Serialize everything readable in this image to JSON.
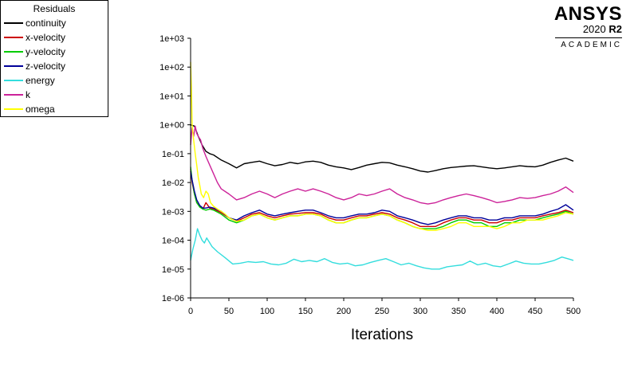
{
  "brand": {
    "name": "ANSYS",
    "version": "2020",
    "release": "R2",
    "edition": "ACADEMIC"
  },
  "chart_data": {
    "type": "line",
    "title": "",
    "xlabel": "Iterations",
    "ylabel": "",
    "xlim": [
      0,
      500
    ],
    "ylim": [
      1e-06,
      1000
    ],
    "yscale": "log",
    "grid": false,
    "legend_title": "Residuals",
    "legend_position": "top-left",
    "x_ticks": [
      "0",
      "50",
      "100",
      "150",
      "200",
      "250",
      "300",
      "350",
      "400",
      "450",
      "500"
    ],
    "y_ticks": [
      "1e-06",
      "1e-05",
      "1e-04",
      "1e-03",
      "1e-02",
      "1e-01",
      "1e+00",
      "1e+01",
      "1e+02",
      "1e+03"
    ],
    "series": [
      {
        "name": "continuity",
        "color": "#000000",
        "x": [
          0,
          5,
          10,
          15,
          20,
          25,
          30,
          40,
          50,
          60,
          70,
          80,
          90,
          100,
          110,
          120,
          130,
          140,
          150,
          160,
          170,
          180,
          190,
          200,
          210,
          220,
          230,
          240,
          250,
          260,
          270,
          280,
          290,
          300,
          310,
          320,
          330,
          340,
          350,
          360,
          370,
          380,
          390,
          400,
          410,
          420,
          430,
          440,
          450,
          460,
          470,
          480,
          490,
          500
        ],
        "y": [
          1.0,
          0.9,
          0.4,
          0.2,
          0.12,
          0.1,
          0.09,
          0.06,
          0.045,
          0.032,
          0.045,
          0.05,
          0.055,
          0.045,
          0.038,
          0.042,
          0.05,
          0.045,
          0.052,
          0.055,
          0.05,
          0.04,
          0.035,
          0.032,
          0.028,
          0.033,
          0.04,
          0.045,
          0.05,
          0.048,
          0.04,
          0.035,
          0.03,
          0.025,
          0.023,
          0.026,
          0.03,
          0.033,
          0.035,
          0.037,
          0.038,
          0.035,
          0.032,
          0.03,
          0.032,
          0.035,
          0.038,
          0.036,
          0.035,
          0.04,
          0.05,
          0.06,
          0.07,
          0.055
        ]
      },
      {
        "name": "x-velocity",
        "color": "#cc0000",
        "x": [
          0,
          2,
          5,
          8,
          12,
          16,
          20,
          25,
          30,
          40,
          50,
          60,
          70,
          80,
          90,
          100,
          110,
          120,
          130,
          140,
          150,
          160,
          170,
          180,
          190,
          200,
          210,
          220,
          230,
          240,
          250,
          260,
          270,
          280,
          290,
          300,
          310,
          320,
          330,
          340,
          350,
          360,
          370,
          380,
          390,
          400,
          410,
          420,
          430,
          440,
          450,
          460,
          470,
          480,
          490,
          500
        ],
        "y": [
          0.03,
          0.01,
          0.004,
          0.002,
          0.0015,
          0.0012,
          0.002,
          0.0013,
          0.0012,
          0.0009,
          0.0006,
          0.00045,
          0.0006,
          0.0008,
          0.0009,
          0.0007,
          0.0006,
          0.0007,
          0.0008,
          0.00085,
          0.0009,
          0.0009,
          0.0008,
          0.0006,
          0.0005,
          0.0005,
          0.0006,
          0.0007,
          0.0007,
          0.0008,
          0.0009,
          0.0008,
          0.0006,
          0.0005,
          0.0004,
          0.0003,
          0.0003,
          0.0003,
          0.0004,
          0.0005,
          0.0006,
          0.0006,
          0.0005,
          0.0005,
          0.0004,
          0.0004,
          0.0005,
          0.0005,
          0.0006,
          0.0006,
          0.0006,
          0.0007,
          0.0008,
          0.0009,
          0.0011,
          0.0009
        ]
      },
      {
        "name": "y-velocity",
        "color": "#00cc00",
        "x": [
          0,
          2,
          5,
          8,
          12,
          16,
          20,
          25,
          30,
          40,
          50,
          60,
          70,
          80,
          90,
          100,
          110,
          120,
          130,
          140,
          150,
          160,
          170,
          180,
          190,
          200,
          210,
          220,
          230,
          240,
          250,
          260,
          270,
          280,
          290,
          300,
          310,
          320,
          330,
          340,
          350,
          360,
          370,
          380,
          390,
          400,
          410,
          420,
          430,
          440,
          450,
          460,
          470,
          480,
          490,
          500
        ],
        "y": [
          0.035,
          0.012,
          0.004,
          0.002,
          0.0014,
          0.0012,
          0.0011,
          0.0012,
          0.0011,
          0.0008,
          0.0005,
          0.0004,
          0.0005,
          0.0007,
          0.0008,
          0.0006,
          0.0005,
          0.0006,
          0.0007,
          0.0007,
          0.0008,
          0.0008,
          0.0007,
          0.0005,
          0.0004,
          0.0004,
          0.0005,
          0.0006,
          0.0006,
          0.0007,
          0.0008,
          0.0007,
          0.0005,
          0.0004,
          0.0003,
          0.00025,
          0.00025,
          0.00025,
          0.0003,
          0.0004,
          0.0005,
          0.0005,
          0.0004,
          0.0004,
          0.0003,
          0.0003,
          0.0004,
          0.0004,
          0.0005,
          0.0005,
          0.0005,
          0.0006,
          0.0007,
          0.0008,
          0.001,
          0.0008
        ]
      },
      {
        "name": "z-velocity",
        "color": "#000099",
        "x": [
          0,
          2,
          5,
          8,
          12,
          16,
          20,
          25,
          30,
          40,
          50,
          60,
          70,
          80,
          90,
          100,
          110,
          120,
          130,
          140,
          150,
          160,
          170,
          180,
          190,
          200,
          210,
          220,
          230,
          240,
          250,
          260,
          270,
          280,
          290,
          300,
          310,
          320,
          330,
          340,
          350,
          360,
          370,
          380,
          390,
          400,
          410,
          420,
          430,
          440,
          450,
          460,
          470,
          480,
          490,
          500
        ],
        "y": [
          0.025,
          0.012,
          0.005,
          0.0025,
          0.0016,
          0.0013,
          0.0013,
          0.0014,
          0.0013,
          0.001,
          0.0006,
          0.0005,
          0.0007,
          0.0009,
          0.0011,
          0.0008,
          0.0007,
          0.0008,
          0.0009,
          0.001,
          0.0011,
          0.0011,
          0.0009,
          0.0007,
          0.0006,
          0.0006,
          0.0007,
          0.0008,
          0.0008,
          0.0009,
          0.0011,
          0.001,
          0.0007,
          0.0006,
          0.0005,
          0.0004,
          0.00035,
          0.0004,
          0.0005,
          0.0006,
          0.0007,
          0.0007,
          0.0006,
          0.0006,
          0.0005,
          0.0005,
          0.0006,
          0.0006,
          0.0007,
          0.0007,
          0.0007,
          0.0008,
          0.001,
          0.0012,
          0.0017,
          0.0011
        ]
      },
      {
        "name": "energy",
        "color": "#33dddd",
        "x": [
          0,
          3,
          6,
          9,
          12,
          15,
          18,
          21,
          24,
          28,
          35,
          45,
          55,
          65,
          75,
          85,
          95,
          105,
          115,
          125,
          135,
          145,
          155,
          165,
          175,
          185,
          195,
          205,
          215,
          225,
          235,
          245,
          255,
          265,
          275,
          285,
          295,
          305,
          315,
          325,
          335,
          345,
          355,
          365,
          375,
          385,
          395,
          405,
          415,
          425,
          435,
          445,
          455,
          465,
          475,
          485,
          495,
          500
        ],
        "y": [
          2e-05,
          5e-05,
          0.0001,
          0.00025,
          0.00015,
          0.0001,
          8e-05,
          0.00012,
          9e-05,
          6e-05,
          4e-05,
          2.5e-05,
          1.5e-05,
          1.6e-05,
          1.8e-05,
          1.7e-05,
          1.8e-05,
          1.5e-05,
          1.4e-05,
          1.6e-05,
          2.2e-05,
          1.8e-05,
          2e-05,
          1.8e-05,
          2.3e-05,
          1.7e-05,
          1.5e-05,
          1.6e-05,
          1.3e-05,
          1.4e-05,
          1.7e-05,
          2e-05,
          2.3e-05,
          1.8e-05,
          1.4e-05,
          1.6e-05,
          1.3e-05,
          1.1e-05,
          1e-05,
          1e-05,
          1.2e-05,
          1.3e-05,
          1.4e-05,
          1.9e-05,
          1.4e-05,
          1.6e-05,
          1.3e-05,
          1.2e-05,
          1.5e-05,
          1.9e-05,
          1.6e-05,
          1.5e-05,
          1.5e-05,
          1.7e-05,
          2e-05,
          2.6e-05,
          2.2e-05,
          2e-05
        ]
      },
      {
        "name": "k",
        "color": "#cc2299",
        "x": [
          0,
          2,
          4,
          6,
          8,
          10,
          13,
          16,
          20,
          25,
          30,
          35,
          40,
          50,
          60,
          70,
          80,
          90,
          100,
          110,
          120,
          130,
          140,
          150,
          160,
          170,
          180,
          190,
          200,
          210,
          220,
          230,
          240,
          250,
          260,
          270,
          280,
          290,
          300,
          310,
          320,
          330,
          340,
          350,
          360,
          370,
          380,
          390,
          400,
          410,
          420,
          430,
          440,
          450,
          460,
          470,
          480,
          490,
          500
        ],
        "y": [
          0.2,
          0.8,
          0.4,
          0.9,
          0.5,
          0.4,
          0.3,
          0.15,
          0.08,
          0.04,
          0.02,
          0.01,
          0.006,
          0.004,
          0.0025,
          0.003,
          0.004,
          0.005,
          0.004,
          0.003,
          0.004,
          0.005,
          0.006,
          0.005,
          0.006,
          0.005,
          0.004,
          0.003,
          0.0025,
          0.003,
          0.004,
          0.0035,
          0.004,
          0.005,
          0.006,
          0.004,
          0.003,
          0.0025,
          0.002,
          0.0018,
          0.002,
          0.0025,
          0.003,
          0.0035,
          0.004,
          0.0035,
          0.003,
          0.0025,
          0.002,
          0.0022,
          0.0025,
          0.003,
          0.0028,
          0.003,
          0.0035,
          0.004,
          0.005,
          0.007,
          0.0045
        ]
      },
      {
        "name": "omega",
        "color": "#ffff00",
        "x": [
          0,
          1,
          2,
          4,
          6,
          8,
          10,
          12,
          14,
          17,
          20,
          23,
          26,
          30,
          35,
          40,
          45,
          50,
          60,
          70,
          80,
          90,
          100,
          110,
          120,
          130,
          140,
          150,
          160,
          170,
          180,
          190,
          200,
          210,
          220,
          230,
          240,
          250,
          260,
          270,
          280,
          290,
          300,
          310,
          320,
          330,
          340,
          350,
          360,
          370,
          380,
          390,
          400,
          410,
          420,
          430,
          440,
          450,
          460,
          470,
          480,
          490,
          500
        ],
        "y": [
          150,
          20,
          1.0,
          0.3,
          0.1,
          0.04,
          0.015,
          0.008,
          0.004,
          0.003,
          0.005,
          0.004,
          0.002,
          0.0015,
          0.0012,
          0.001,
          0.0008,
          0.0006,
          0.00045,
          0.0005,
          0.0007,
          0.0008,
          0.0006,
          0.0005,
          0.0006,
          0.0007,
          0.0007,
          0.0008,
          0.0008,
          0.0007,
          0.0005,
          0.0004,
          0.0004,
          0.0005,
          0.0006,
          0.0006,
          0.0007,
          0.0008,
          0.0007,
          0.0005,
          0.0004,
          0.0003,
          0.00025,
          0.00022,
          0.00022,
          0.00025,
          0.0003,
          0.0004,
          0.0004,
          0.0003,
          0.0003,
          0.0003,
          0.00025,
          0.0003,
          0.0004,
          0.0004,
          0.0005,
          0.0005,
          0.0005,
          0.0006,
          0.0007,
          0.0009,
          0.0008
        ]
      }
    ]
  }
}
